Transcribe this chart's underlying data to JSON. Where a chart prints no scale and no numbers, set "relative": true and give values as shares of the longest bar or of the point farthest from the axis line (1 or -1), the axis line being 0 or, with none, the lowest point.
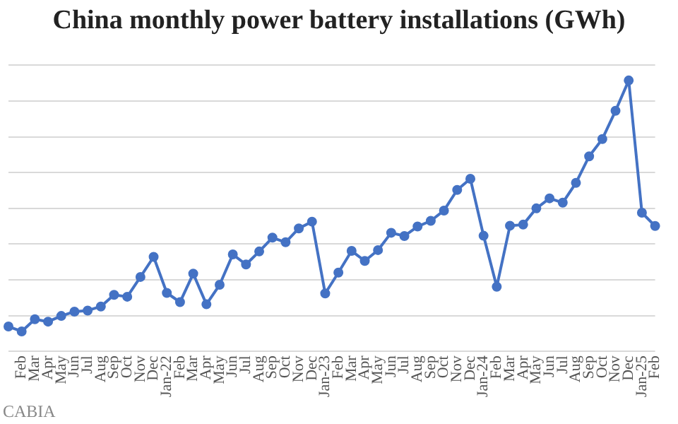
{
  "chart_data": {
    "type": "line",
    "title": "China monthly power battery installations (GWh)",
    "categories": [
      null,
      "Feb",
      "Mar",
      "Apr",
      "May",
      "Jun",
      "Jul",
      "Aug",
      "Sep",
      "Oct",
      "Nov",
      "Dec",
      "Jan-22",
      "Feb",
      "Mar",
      "Apr",
      "May",
      "Jun",
      "Jul",
      "Aug",
      "Sep",
      "Oct",
      "Nov",
      "Dec",
      "Jan-23",
      "Feb",
      "Mar",
      "Apr",
      "May",
      "Jun",
      "Jul",
      "Aug",
      "Sep",
      "Oct",
      "Nov",
      "Dec",
      "Jan-24",
      "Feb",
      "Mar",
      "Apr",
      "May",
      "Jun",
      "Jul",
      "Aug",
      "Sep",
      "Oct",
      "Nov",
      "Dec",
      "Jan-25",
      "Feb"
    ],
    "series": [
      {
        "color": "#4472c4",
        "values": [
          0.092,
          0.074,
          0.119,
          0.11,
          0.131,
          0.147,
          0.151,
          0.166,
          0.209,
          0.202,
          0.275,
          0.349,
          0.216,
          0.182,
          0.287,
          0.174,
          0.246,
          0.358,
          0.321,
          0.369,
          0.42,
          0.403,
          0.454,
          0.479,
          0.214,
          0.291,
          0.371,
          0.334,
          0.374,
          0.438,
          0.426,
          0.461,
          0.482,
          0.52,
          0.596,
          0.637,
          0.427,
          0.239,
          0.464,
          0.468,
          0.528,
          0.565,
          0.549,
          0.622,
          0.72,
          0.784,
          0.888,
          1,
          0.512,
          0.463
        ]
      }
    ],
    "relative": true,
    "grid": "y",
    "marker": "circle",
    "line_style": "solid",
    "legend": false,
    "annotations": [
      "CABIA"
    ]
  }
}
